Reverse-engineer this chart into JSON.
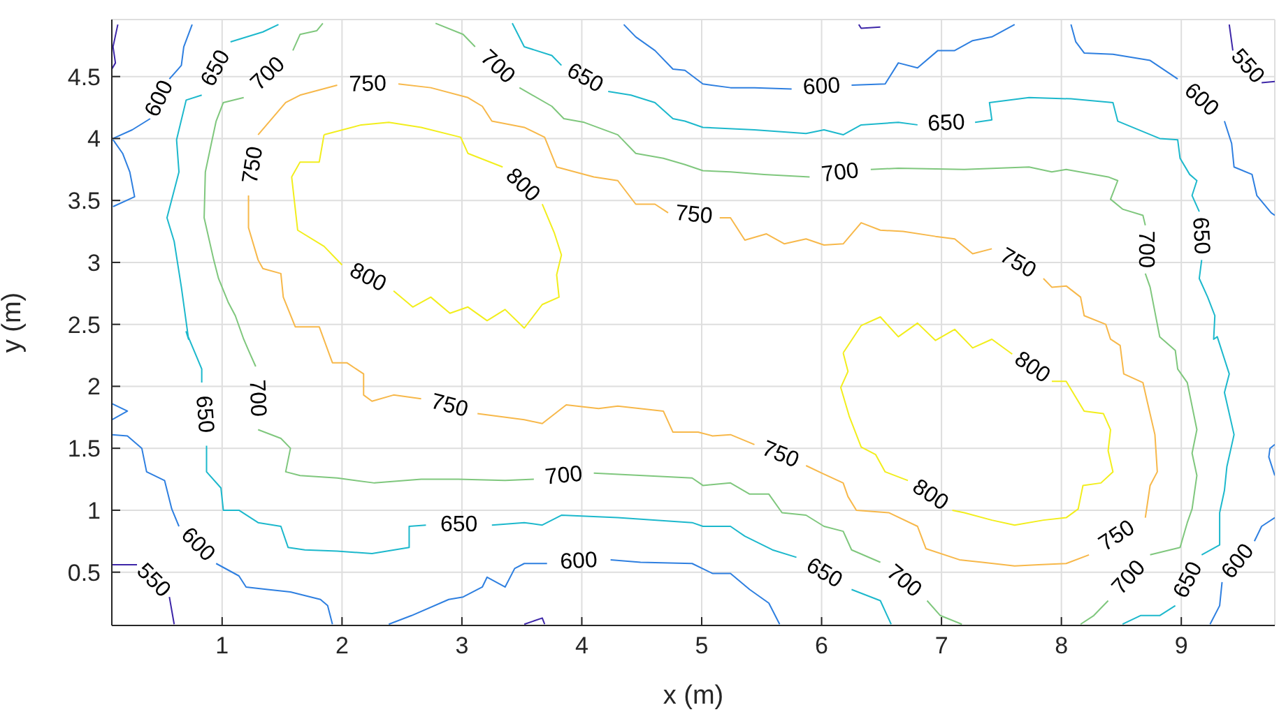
{
  "chart_data": {
    "type": "line",
    "xlabel": "x (m)",
    "ylabel": "y (m)",
    "xlim": [
      0.08,
      9.78
    ],
    "ylim": [
      0.07,
      4.96
    ],
    "xticks": [
      1,
      2,
      3,
      4,
      5,
      6,
      7,
      8,
      9
    ],
    "yticks": [
      0.5,
      1,
      1.5,
      2,
      2.5,
      3,
      3.5,
      4,
      4.5
    ],
    "grid": true,
    "series": [
      {
        "color": "#3d26a8",
        "x": [
          0.13,
          0.09,
          0.11,
          0.08
        ],
        "values": [
          4.92,
          4.74,
          4.61,
          4.56
        ]
      },
      {
        "name": "550",
        "color": "#3d26a8",
        "x": [
          0.08,
          0.29,
          null,
          0.56,
          0.6
        ],
        "values": [
          0.56,
          0.56,
          null,
          0.3,
          0.08
        ]
      },
      {
        "color": "#3d26a8",
        "x": [
          3.52,
          3.67,
          3.69
        ],
        "values": [
          0.08,
          0.13,
          0.08
        ]
      },
      {
        "color": "#3d26a8",
        "x": [
          6.31,
          6.33,
          6.49
        ],
        "values": [
          4.92,
          4.89,
          4.9
        ]
      },
      {
        "name": "550",
        "color": "#3d26a8",
        "x": [
          9.4,
          9.43,
          null,
          9.67,
          9.78
        ],
        "values": [
          4.92,
          4.71,
          null,
          4.45,
          4.46
        ]
      },
      {
        "name": "600",
        "color": "#2e7fe0",
        "x": [
          0.75,
          0.68,
          0.66,
          0.56,
          null,
          0.4,
          0.25,
          0.09
        ],
        "values": [
          4.92,
          4.74,
          4.59,
          4.48,
          null,
          4.16,
          4.07,
          4.0
        ]
      },
      {
        "color": "#2e7fe0",
        "x": [
          0.09,
          0.17,
          0.23,
          0.27,
          0.09
        ],
        "values": [
          3.99,
          3.88,
          3.73,
          3.53,
          3.45
        ]
      },
      {
        "color": "#2e7fe0",
        "x": [
          0.08,
          0.21,
          0.08
        ],
        "values": [
          1.86,
          1.8,
          1.73
        ]
      },
      {
        "name": "600",
        "color": "#2e7fe0",
        "x": [
          0.08,
          0.21,
          0.33,
          0.37,
          0.52,
          0.58,
          0.64,
          null,
          0.95,
          1.14,
          1.2,
          1.38,
          1.57,
          1.82,
          1.88,
          1.92
        ],
        "values": [
          1.61,
          1.6,
          1.5,
          1.31,
          1.24,
          1.01,
          0.87,
          null,
          0.57,
          0.47,
          0.38,
          0.36,
          0.34,
          0.28,
          0.23,
          0.08
        ]
      },
      {
        "name": "600",
        "color": "#2e7fe0",
        "x": [
          2.39,
          2.58,
          2.89,
          3.01,
          3.17,
          3.21,
          3.36,
          3.44,
          3.52,
          3.71,
          null,
          4.24,
          4.49,
          4.92,
          5.09,
          5.24,
          5.4,
          5.56,
          5.65
        ],
        "values": [
          0.08,
          0.15,
          0.28,
          0.3,
          0.38,
          0.46,
          0.38,
          0.53,
          0.57,
          0.57,
          null,
          0.6,
          0.58,
          0.57,
          0.49,
          0.49,
          0.36,
          0.25,
          0.08
        ]
      },
      {
        "name": "600",
        "color": "#2e7fe0",
        "x": [
          4.35,
          4.45,
          4.61,
          4.76,
          4.86,
          5.01,
          5.24,
          5.44,
          5.75,
          null,
          6.25,
          6.53,
          6.64,
          6.8,
          6.97,
          7.11,
          7.26,
          7.42,
          7.61
        ],
        "values": [
          4.92,
          4.82,
          4.71,
          4.56,
          4.55,
          4.44,
          4.41,
          4.41,
          4.4,
          null,
          4.43,
          4.44,
          4.61,
          4.57,
          4.71,
          4.71,
          4.79,
          4.82,
          4.92
        ]
      },
      {
        "name": "600",
        "color": "#2e7fe0",
        "x": [
          8.08,
          8.12,
          8.19,
          8.43,
          8.74,
          8.97,
          null,
          9.36,
          9.42,
          9.44,
          9.59,
          9.63,
          9.75,
          9.78
        ],
        "values": [
          4.92,
          4.78,
          4.69,
          4.68,
          4.63,
          4.48,
          null,
          4.14,
          3.96,
          3.77,
          3.71,
          3.54,
          3.4,
          3.38
        ]
      },
      {
        "color": "#2e7fe0",
        "x": [
          9.78,
          9.74,
          9.73,
          9.78
        ],
        "values": [
          1.53,
          1.5,
          1.43,
          1.28
        ]
      },
      {
        "name": "600",
        "color": "#2e7fe0",
        "x": [
          9.78,
          9.67,
          9.61,
          null,
          9.34,
          9.32,
          9.24
        ],
        "values": [
          0.94,
          0.87,
          0.75,
          null,
          0.42,
          0.23,
          0.08
        ]
      },
      {
        "name": "650",
        "color": "#1cb8cc",
        "x": [
          1.47,
          1.34,
          1.07,
          null,
          0.83,
          0.7,
          0.62,
          0.64,
          0.54,
          0.6,
          0.66,
          0.72,
          0.7,
          0.83,
          0.83,
          null,
          0.87,
          0.87,
          0.99,
          1.01,
          1.14,
          1.3,
          1.49,
          1.55,
          1.69,
          1.96,
          2.25,
          2.56,
          2.56,
          2.7,
          null,
          3.25,
          3.52,
          3.67,
          3.83,
          4.3,
          4.92,
          5.01,
          5.24,
          5.36,
          5.59,
          5.79,
          null,
          6.25,
          6.49,
          6.58
        ],
        "values": [
          4.92,
          4.86,
          4.78,
          null,
          4.35,
          4.31,
          3.99,
          3.73,
          3.36,
          3.17,
          2.8,
          2.38,
          2.44,
          2.14,
          2.03,
          null,
          1.52,
          1.31,
          1.18,
          1.0,
          1.0,
          0.9,
          0.87,
          0.7,
          0.68,
          0.67,
          0.65,
          0.7,
          0.87,
          0.88,
          null,
          0.88,
          0.9,
          0.88,
          0.96,
          0.94,
          0.9,
          0.87,
          0.87,
          0.79,
          0.68,
          0.62,
          null,
          0.36,
          0.27,
          0.08
        ]
      },
      {
        "name": "650",
        "color": "#1cb8cc",
        "x": [
          3.42,
          3.52,
          3.75,
          3.83,
          null,
          4.22,
          4.41,
          4.61,
          4.76,
          4.86,
          5.01,
          5.44,
          5.87,
          6.02,
          6.18,
          6.33,
          6.64,
          6.8,
          null,
          7.28,
          7.42,
          7.4,
          7.73,
          8.08,
          8.43,
          8.47,
          8.82,
          8.97,
          8.99,
          9.07,
          9.13,
          9.09,
          9.15,
          null,
          9.17,
          9.15,
          9.22,
          9.28,
          9.27,
          9.3,
          9.4,
          9.36,
          9.44,
          9.38,
          9.36,
          9.32,
          9.32,
          9.17,
          null,
          8.95,
          8.82,
          8.66,
          8.51
        ],
        "values": [
          4.93,
          4.74,
          4.67,
          4.59,
          null,
          4.38,
          4.35,
          4.29,
          4.16,
          4.14,
          4.09,
          4.07,
          4.04,
          4.07,
          4.03,
          4.11,
          4.13,
          4.11,
          null,
          4.13,
          4.15,
          4.29,
          4.33,
          4.32,
          4.29,
          4.14,
          4.0,
          3.99,
          3.84,
          3.71,
          3.66,
          3.54,
          3.41,
          null,
          3.02,
          2.87,
          2.72,
          2.57,
          2.38,
          2.4,
          2.1,
          1.95,
          1.61,
          1.35,
          1.16,
          0.98,
          0.72,
          0.64,
          null,
          0.23,
          0.15,
          0.15,
          0.08
        ]
      },
      {
        "name": "700",
        "color": "#7fc77d",
        "x": [
          1.84,
          1.79,
          1.65,
          1.59,
          null,
          1.18,
          1.01,
          0.95,
          0.91,
          0.86,
          0.85,
          0.93,
          0.97,
          1.05,
          1.11,
          1.18,
          1.22,
          1.28,
          null,
          1.3,
          1.49,
          1.57,
          1.53,
          1.65,
          1.96,
          2.27,
          2.66,
          2.97,
          3.36,
          3.6,
          null,
          4.1,
          4.92,
          5.01,
          5.24,
          5.4,
          5.56,
          5.67,
          5.87,
          6.02,
          6.18,
          6.25,
          6.49,
          null,
          6.88,
          6.99,
          7.17
        ],
        "values": [
          4.93,
          4.87,
          4.84,
          4.71,
          null,
          4.33,
          4.29,
          4.14,
          3.96,
          3.73,
          3.36,
          3.02,
          2.87,
          2.68,
          2.57,
          2.38,
          2.29,
          2.16,
          null,
          1.65,
          1.58,
          1.5,
          1.31,
          1.28,
          1.26,
          1.22,
          1.25,
          1.25,
          1.24,
          1.25,
          null,
          1.3,
          1.26,
          1.2,
          1.22,
          1.13,
          1.13,
          0.98,
          0.96,
          0.87,
          0.83,
          0.68,
          0.58,
          null,
          0.27,
          0.15,
          0.08
        ]
      },
      {
        "name": "700",
        "color": "#7fc77d",
        "x": [
          2.78,
          3.01,
          3.11,
          null,
          3.48,
          3.75,
          3.85,
          4.02,
          4.3,
          4.45,
          4.68,
          4.86,
          5.01,
          5.24,
          5.52,
          5.9,
          null,
          6.41,
          6.64,
          7.19,
          7.73,
          7.92,
          8.04,
          8.39,
          8.47,
          8.41,
          8.51,
          8.68,
          8.7,
          null,
          8.7,
          8.74,
          8.82,
          8.95,
          8.97,
          9.05,
          9.13,
          9.09,
          9.13,
          9.09,
          9.05,
          8.99,
          8.74,
          null,
          8.39,
          8.27,
          8.16
        ],
        "values": [
          4.93,
          4.84,
          4.74,
          null,
          4.41,
          4.26,
          4.16,
          4.13,
          4.03,
          3.88,
          3.84,
          3.79,
          3.74,
          3.73,
          3.71,
          3.69,
          null,
          3.75,
          3.76,
          3.75,
          3.77,
          3.73,
          3.75,
          3.69,
          3.66,
          3.51,
          3.43,
          3.38,
          3.3,
          null,
          2.91,
          2.8,
          2.4,
          2.29,
          2.14,
          2.03,
          1.65,
          1.46,
          1.28,
          1.01,
          0.9,
          0.7,
          0.64,
          null,
          0.27,
          0.15,
          0.08
        ]
      },
      {
        "name": "750",
        "color": "#f7b84a",
        "x": [
          1.3,
          1.53,
          1.65,
          1.96,
          null,
          2.47,
          2.74,
          3.05,
          3.17,
          3.25,
          3.52,
          3.69,
          3.79,
          4.1,
          4.3,
          4.45,
          4.61,
          4.72,
          null,
          5.15,
          5.24,
          5.36,
          5.54,
          5.69,
          5.87,
          6.02,
          6.18,
          6.33,
          6.49,
          6.68,
          6.95,
          7.11,
          7.26,
          7.42,
          null,
          7.85,
          7.92,
          8.04,
          8.16,
          8.19,
          8.37,
          8.41,
          8.49,
          8.52,
          8.68,
          8.72,
          8.78,
          8.8,
          8.74,
          8.7,
          null,
          8.23,
          8.04,
          7.81,
          7.61,
          7.34,
          7.15,
          6.87,
          6.8,
          6.56,
          6.29,
          6.22,
          6.18,
          6.0,
          5.87,
          null,
          5.44,
          5.24,
          5.09,
          4.97,
          4.76,
          4.68,
          4.3,
          4.14,
          3.87,
          3.67,
          3.52,
          3.13,
          null,
          2.66,
          2.43,
          2.25,
          2.18,
          2.18,
          2.04,
          1.92,
          1.81,
          1.61,
          1.51,
          1.49,
          1.34,
          1.3,
          1.22,
          1.22,
          null,
          1.3
        ],
        "values": [
          4.03,
          4.29,
          4.35,
          4.43,
          null,
          4.44,
          4.41,
          4.33,
          4.26,
          4.14,
          4.09,
          4.01,
          3.77,
          3.69,
          3.66,
          3.47,
          3.47,
          3.4,
          null,
          3.36,
          3.36,
          3.18,
          3.23,
          3.15,
          3.19,
          3.14,
          3.15,
          3.32,
          3.26,
          3.25,
          3.21,
          3.19,
          3.07,
          3.11,
          null,
          2.87,
          2.8,
          2.81,
          2.72,
          2.57,
          2.5,
          2.38,
          2.33,
          2.1,
          2.03,
          1.86,
          1.61,
          1.31,
          1.2,
          0.94,
          null,
          0.64,
          0.57,
          0.56,
          0.55,
          0.58,
          0.6,
          0.69,
          0.87,
          0.98,
          1.0,
          1.11,
          1.22,
          1.3,
          1.36,
          null,
          1.53,
          1.61,
          1.6,
          1.63,
          1.63,
          1.8,
          1.84,
          1.82,
          1.85,
          1.7,
          1.73,
          1.78,
          null,
          1.9,
          1.93,
          1.88,
          1.93,
          2.1,
          2.19,
          2.19,
          2.48,
          2.48,
          2.72,
          2.91,
          2.95,
          3.02,
          3.28,
          3.54,
          null,
          4.03
        ]
      },
      {
        "name": "800",
        "color": "#f2ee1c",
        "x": [
          1.85,
          2.16,
          2.39,
          2.66,
          2.99,
          3.05,
          3.34,
          null,
          3.67,
          3.77,
          3.83,
          3.79,
          3.81,
          3.67,
          3.52,
          3.36,
          3.21,
          3.05,
          2.9,
          2.74,
          2.59,
          2.43,
          null,
          2.0,
          1.85,
          1.63,
          1.58,
          1.65,
          1.81,
          1.85
        ],
        "values": [
          4.03,
          4.11,
          4.13,
          4.09,
          4.01,
          3.88,
          3.77,
          null,
          3.47,
          3.24,
          3.06,
          2.9,
          2.72,
          2.66,
          2.47,
          2.62,
          2.53,
          2.64,
          2.59,
          2.72,
          2.64,
          2.77,
          null,
          2.98,
          3.13,
          3.26,
          3.69,
          3.81,
          3.81,
          4.03
        ]
      },
      {
        "name": "800",
        "color": "#f2ee1c",
        "x": [
          6.18,
          6.33,
          6.49,
          6.64,
          6.8,
          6.95,
          7.11,
          7.26,
          7.42,
          7.59,
          null,
          7.92,
          8.04,
          8.19,
          8.35,
          8.41,
          8.39,
          8.43,
          8.33,
          8.18,
          8.14,
          8.04,
          7.85,
          7.61,
          7.42,
          7.19,
          7.09,
          null,
          6.72,
          6.53,
          6.45,
          6.33,
          6.23,
          6.16,
          6.22,
          6.18
        ],
        "values": [
          2.27,
          2.49,
          2.56,
          2.4,
          2.51,
          2.37,
          2.46,
          2.31,
          2.38,
          2.26,
          null,
          2.04,
          2.04,
          1.8,
          1.78,
          1.65,
          1.48,
          1.31,
          1.22,
          1.2,
          1.01,
          0.94,
          0.92,
          0.88,
          0.92,
          0.98,
          1.0,
          null,
          1.24,
          1.31,
          1.45,
          1.51,
          1.76,
          1.99,
          2.12,
          2.27
        ]
      }
    ]
  }
}
